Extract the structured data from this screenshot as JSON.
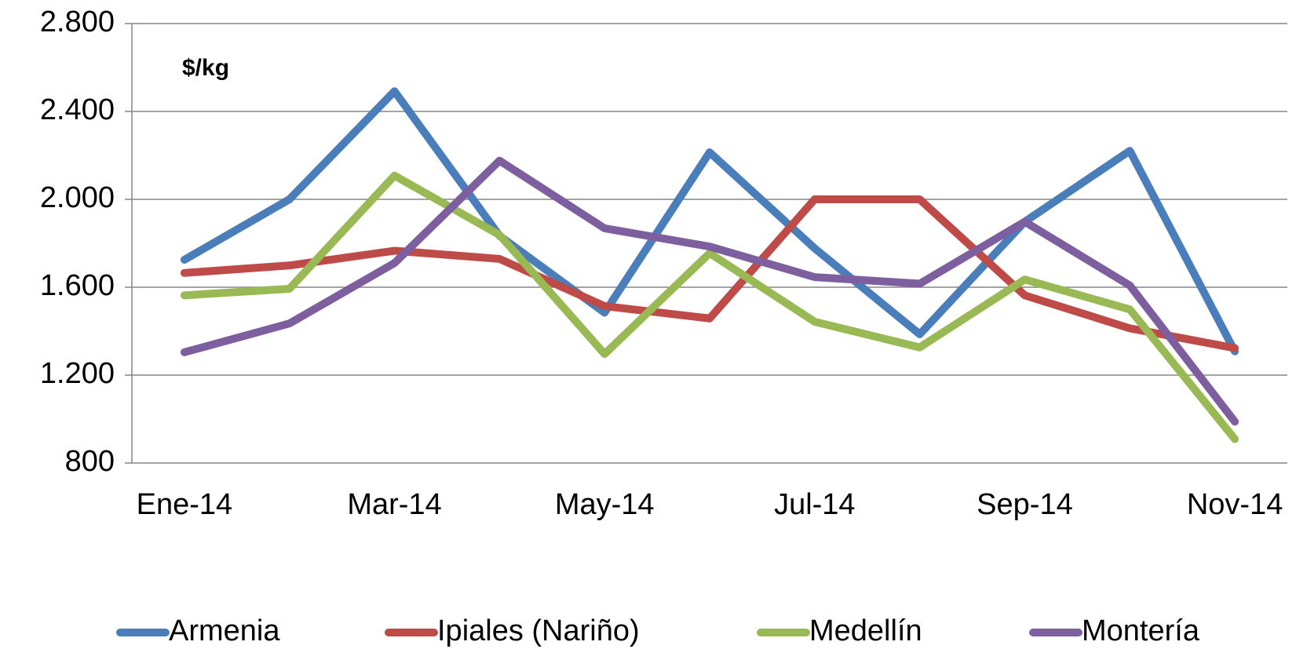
{
  "chart_data": {
    "type": "line",
    "annotation": "$/kg",
    "categories": [
      "Ene-14",
      null,
      "Mar-14",
      null,
      "May-14",
      null,
      "Jul-14",
      null,
      "Sep-14",
      null,
      "Nov-14"
    ],
    "series": [
      {
        "name": "Armenia",
        "color": "#4a7ebb",
        "values": [
          1725,
          2000,
          2492,
          1834,
          1484,
          2214,
          1777,
          1386,
          1898,
          2221,
          1308
        ]
      },
      {
        "name": "Ipiales (Nariño)",
        "color": "#be4b48",
        "values": [
          1665,
          1699,
          1766,
          1729,
          1514,
          1458,
          2000,
          2000,
          1563,
          1413,
          1323
        ]
      },
      {
        "name": "Medellín",
        "color": "#98b954",
        "values": [
          1563,
          1593,
          2108,
          1838,
          1296,
          1755,
          1443,
          1326,
          1635,
          1499,
          909
        ]
      },
      {
        "name": "Montería",
        "color": "#7d5fa0",
        "values": [
          1304,
          1435,
          1710,
          2176,
          1868,
          1785,
          1646,
          1616,
          1898,
          1608,
          988
        ]
      }
    ],
    "ylim": [
      800,
      2800
    ],
    "yticks": [
      800,
      {
        "value": 1200,
        "label": "1.200"
      },
      {
        "value": 1600,
        "label": "1.600"
      },
      {
        "value": 2000,
        "label": "2.000"
      },
      {
        "value": 2400,
        "label": "2.400"
      },
      {
        "value": 2800,
        "label": "2.800"
      }
    ],
    "grid": true,
    "legend": "bottom"
  }
}
